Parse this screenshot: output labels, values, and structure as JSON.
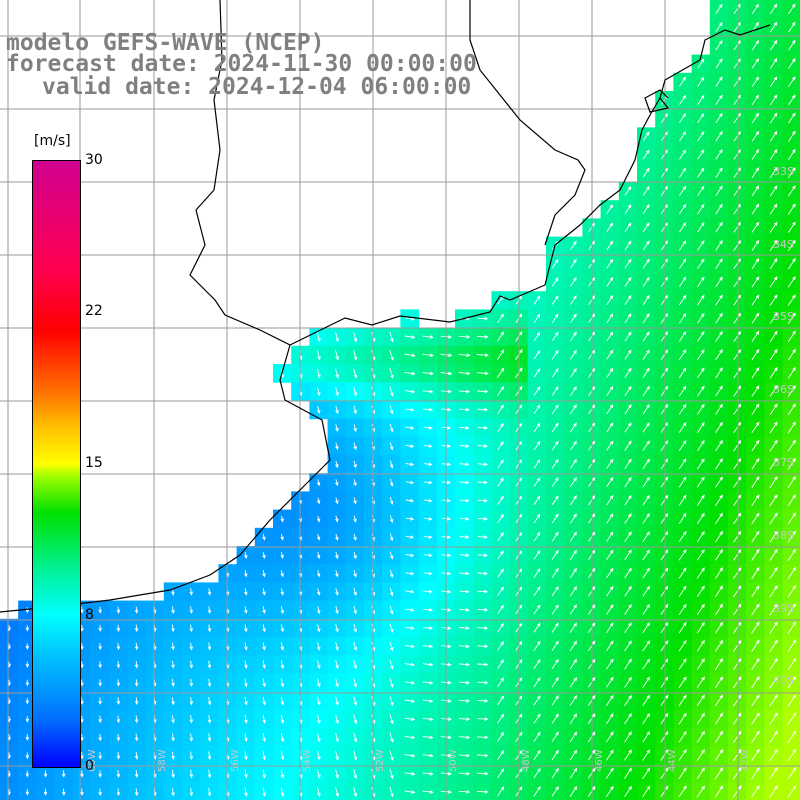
{
  "title": {
    "line1": "modelo GEFS-WAVE (NCEP)",
    "line2": "forecast date: 2024-11-30 00:00:00",
    "line3": "valid date: 2024-12-04 06:00:00"
  },
  "colorbar": {
    "unit": "[m/s]",
    "min": 0,
    "max": 30,
    "ticks": [
      "30",
      "22",
      "15",
      "8",
      "0"
    ],
    "tick_values": [
      30,
      22,
      15,
      8,
      0
    ]
  },
  "layers": {
    "field": "wind speed shaded with direction arrows",
    "land_color": "#ffffff",
    "grid_color": "#a0a0a0",
    "coast_color": "#000000"
  },
  "lat_labels": [
    "33S",
    "34S",
    "35S",
    "36S",
    "37S",
    "38S",
    "39S",
    "40S"
  ],
  "lon_labels": [
    "60W",
    "58W",
    "56W",
    "54W",
    "52W",
    "50W",
    "48W",
    "46W",
    "44W",
    "42W"
  ]
}
